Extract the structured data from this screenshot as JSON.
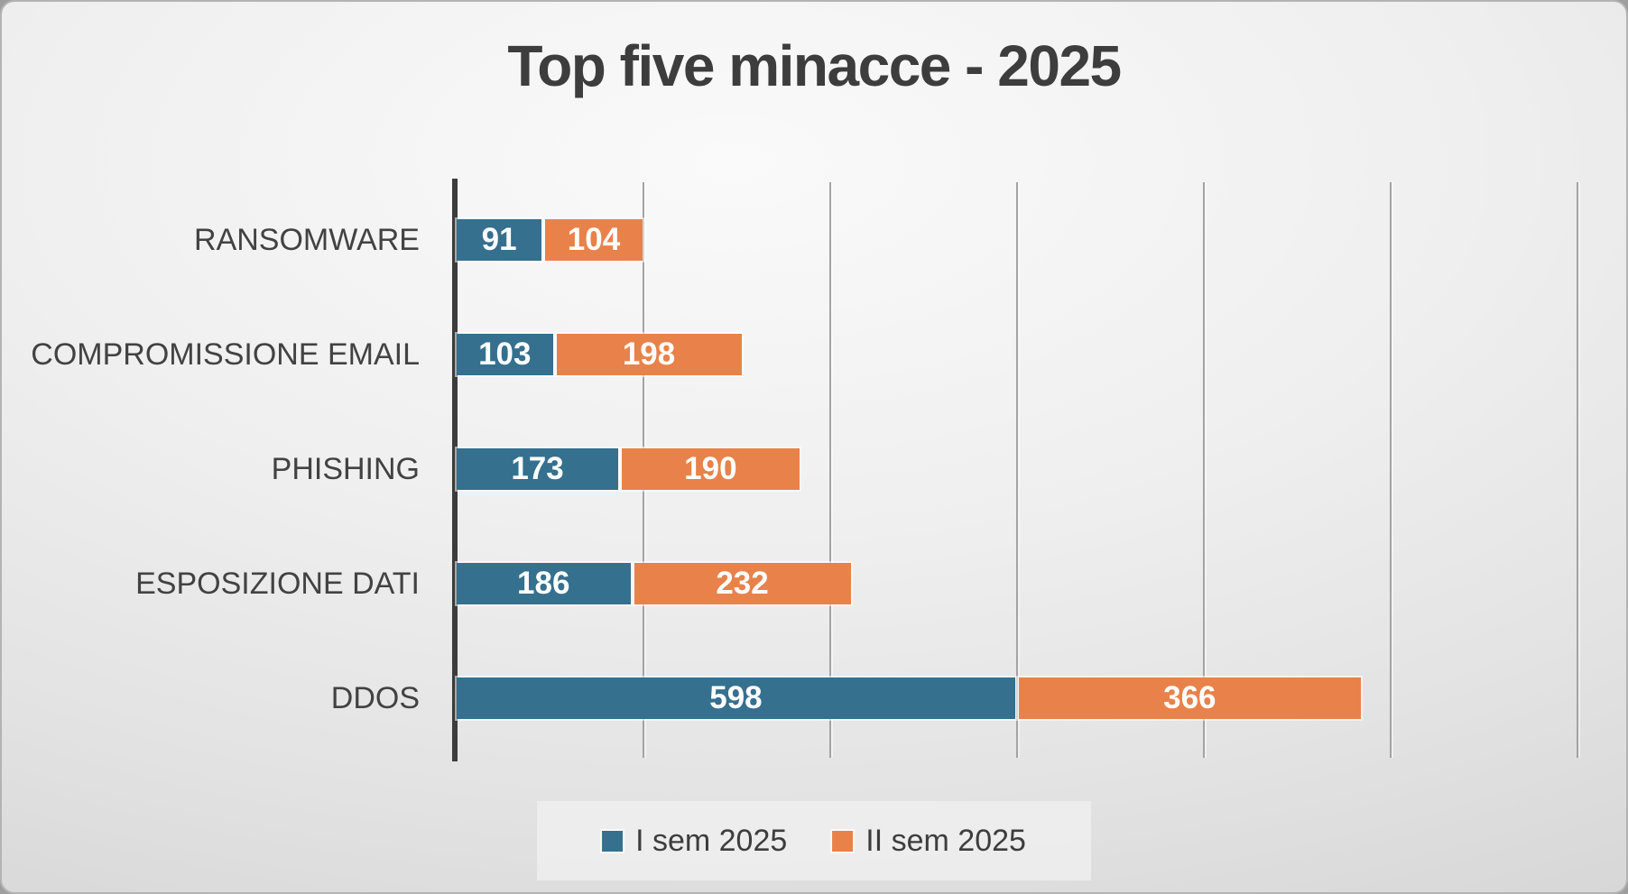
{
  "chart_data": {
    "type": "bar",
    "orientation": "horizontal",
    "stacked": true,
    "title": "Top five minacce - 2025",
    "categories": [
      "RANSOMWARE",
      "COMPROMISSIONE EMAIL",
      "PHISHING",
      "ESPOSIZIONE DATI",
      "DDOS"
    ],
    "series": [
      {
        "name": "I sem 2025",
        "color": "#35708E",
        "values": [
          91,
          103,
          173,
          186,
          598
        ]
      },
      {
        "name": "II sem 2025",
        "color": "#E8824A",
        "values": [
          104,
          198,
          190,
          232,
          366
        ]
      }
    ],
    "xlim": [
      0,
      1200
    ],
    "gridline_step": 200,
    "grid": "vertical-only",
    "legend_position": "bottom",
    "value_labels": "inside-white",
    "colors": {
      "title_text": "#3d3d3d",
      "category_text": "#424242",
      "axis_line": "#3c3c3c",
      "gridline": "#a3a3a3",
      "value_text": "#ffffff"
    }
  }
}
